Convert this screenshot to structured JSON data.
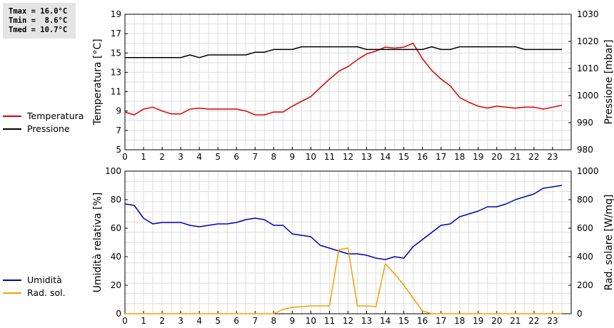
{
  "stats": {
    "tmax": "Tmax = 16.0°C",
    "tmin": "Tmin =  8.6°C",
    "tmed": "Tmed = 10.7°C"
  },
  "legend": {
    "top": [
      {
        "label": "Temperatura",
        "color": "#dd0000"
      },
      {
        "label": "Pressione",
        "color": "#000000"
      }
    ],
    "bottom": [
      {
        "label": "Umidità",
        "color": "#0000bb"
      },
      {
        "label": "Rad. sol.",
        "color": "#f5a000"
      }
    ]
  },
  "chart_data": [
    {
      "type": "line",
      "xlabel": "",
      "xlim": [
        0,
        24
      ],
      "xticks": [
        "0",
        "1",
        "2",
        "3",
        "4",
        "5",
        "6",
        "7",
        "8",
        "9",
        "10",
        "11",
        "12",
        "13",
        "14",
        "15",
        "16",
        "17",
        "18",
        "19",
        "20",
        "21",
        "22",
        "23"
      ],
      "ylabel": "Temperatura [°C]",
      "ylim": [
        5,
        19
      ],
      "yticks": [
        "5",
        "7",
        "9",
        "11",
        "13",
        "15",
        "17",
        "19"
      ],
      "y2label": "Pressione [mbar]",
      "y2lim": [
        980,
        1030
      ],
      "y2ticks": [
        "980",
        "990",
        "1000",
        "1010",
        "1020",
        "1030"
      ],
      "grid": true,
      "series": [
        {
          "name": "Temperatura",
          "axis": "left",
          "color": "#dd0000",
          "x": [
            0,
            0.5,
            1,
            1.5,
            2,
            2.5,
            3,
            3.5,
            4,
            4.5,
            5,
            5.5,
            6,
            6.5,
            7,
            7.5,
            8,
            8.5,
            9,
            9.5,
            10,
            10.5,
            11,
            11.5,
            12,
            12.5,
            13,
            13.5,
            14,
            14.5,
            15,
            15.5,
            16,
            16.5,
            17,
            17.5,
            18,
            18.5,
            19,
            19.5,
            20,
            20.5,
            21,
            21.5,
            22,
            22.5,
            23,
            23.5
          ],
          "y": [
            8.9,
            8.6,
            9.2,
            9.4,
            9.0,
            8.7,
            8.7,
            9.2,
            9.3,
            9.2,
            9.2,
            9.2,
            9.2,
            9.0,
            8.6,
            8.6,
            8.9,
            8.9,
            9.5,
            10.0,
            10.5,
            11.4,
            12.3,
            13.1,
            13.6,
            14.3,
            14.9,
            15.2,
            15.6,
            15.5,
            15.6,
            16.0,
            14.4,
            13.2,
            12.3,
            11.6,
            10.4,
            9.9,
            9.5,
            9.3,
            9.5,
            9.4,
            9.3,
            9.4,
            9.4,
            9.2,
            9.4,
            9.6
          ]
        },
        {
          "name": "Pressione",
          "axis": "right",
          "color": "#000000",
          "x": [
            0,
            0.5,
            1,
            1.5,
            2,
            2.5,
            3,
            3.5,
            4,
            4.5,
            5,
            5.5,
            6,
            6.5,
            7,
            7.5,
            8,
            8.5,
            9,
            9.5,
            10,
            10.5,
            11,
            11.5,
            12,
            12.5,
            13,
            13.5,
            14,
            14.5,
            15,
            15.5,
            16,
            16.5,
            17,
            17.5,
            18,
            18.5,
            19,
            19.5,
            20,
            20.5,
            21,
            21.5,
            22,
            22.5,
            23,
            23.5
          ],
          "y": [
            1014,
            1014,
            1014,
            1014,
            1014,
            1014,
            1014,
            1015,
            1014,
            1015,
            1015,
            1015,
            1015,
            1015,
            1016,
            1016,
            1017,
            1017,
            1017,
            1018,
            1018,
            1018,
            1018,
            1018,
            1018,
            1018,
            1017,
            1017,
            1017,
            1017,
            1017,
            1017,
            1017,
            1018,
            1017,
            1017,
            1018,
            1018,
            1018,
            1018,
            1018,
            1018,
            1018,
            1017,
            1017,
            1017,
            1017,
            1017
          ]
        }
      ]
    },
    {
      "type": "line",
      "xlabel": "",
      "xlim": [
        0,
        24
      ],
      "xticks": [
        "0",
        "1",
        "2",
        "3",
        "4",
        "5",
        "6",
        "7",
        "8",
        "9",
        "10",
        "11",
        "12",
        "13",
        "14",
        "15",
        "16",
        "17",
        "18",
        "19",
        "20",
        "21",
        "22",
        "23"
      ],
      "ylabel": "Umidità relativa [%]",
      "ylim": [
        0,
        100
      ],
      "yticks": [
        "0",
        "20",
        "40",
        "60",
        "80",
        "100"
      ],
      "y2label": "Rad. solare [W/mq]",
      "y2lim": [
        0,
        1000
      ],
      "y2ticks": [
        "0",
        "200",
        "400",
        "600",
        "800",
        "1000"
      ],
      "grid": true,
      "series": [
        {
          "name": "Umidità",
          "axis": "left",
          "color": "#0000bb",
          "x": [
            0,
            0.5,
            1,
            1.5,
            2,
            2.5,
            3,
            3.5,
            4,
            4.5,
            5,
            5.5,
            6,
            6.5,
            7,
            7.5,
            8,
            8.5,
            9,
            9.5,
            10,
            10.5,
            11,
            11.5,
            12,
            12.5,
            13,
            13.5,
            14,
            14.5,
            15,
            15.5,
            16,
            16.5,
            17,
            17.5,
            18,
            18.5,
            19,
            19.5,
            20,
            20.5,
            21,
            21.5,
            22,
            22.5,
            23,
            23.5
          ],
          "y": [
            77,
            76,
            67,
            63,
            64,
            64,
            64,
            62,
            61,
            62,
            63,
            63,
            64,
            66,
            67,
            66,
            62,
            62,
            56,
            55,
            54,
            48,
            46,
            44,
            42,
            42,
            41,
            39,
            38,
            40,
            39,
            47,
            52,
            57,
            62,
            63,
            68,
            70,
            72,
            75,
            75,
            77,
            80,
            82,
            84,
            88,
            89,
            90
          ]
        },
        {
          "name": "Rad. sol.",
          "axis": "right",
          "color": "#f5a000",
          "x": [
            0,
            0.5,
            1,
            1.5,
            2,
            2.5,
            3,
            3.5,
            4,
            4.5,
            5,
            5.5,
            6,
            6.5,
            7,
            7.5,
            8,
            8.5,
            9,
            9.5,
            10,
            10.5,
            11,
            11.5,
            12,
            12.5,
            13,
            13.5,
            14,
            14.5,
            15,
            15.5,
            16,
            16.5,
            17,
            17.5,
            18,
            18.5,
            19,
            19.5,
            20,
            20.5,
            21,
            21.5,
            22,
            22.5,
            23,
            23.5
          ],
          "y": [
            0,
            0,
            0,
            0,
            0,
            0,
            0,
            0,
            0,
            0,
            0,
            0,
            0,
            0,
            0,
            0,
            0,
            30,
            45,
            50,
            55,
            55,
            55,
            450,
            460,
            55,
            55,
            50,
            350,
            280,
            200,
            110,
            20,
            0,
            0,
            0,
            0,
            0,
            0,
            0,
            0,
            0,
            0,
            0,
            0,
            0,
            0,
            0
          ]
        }
      ]
    }
  ]
}
